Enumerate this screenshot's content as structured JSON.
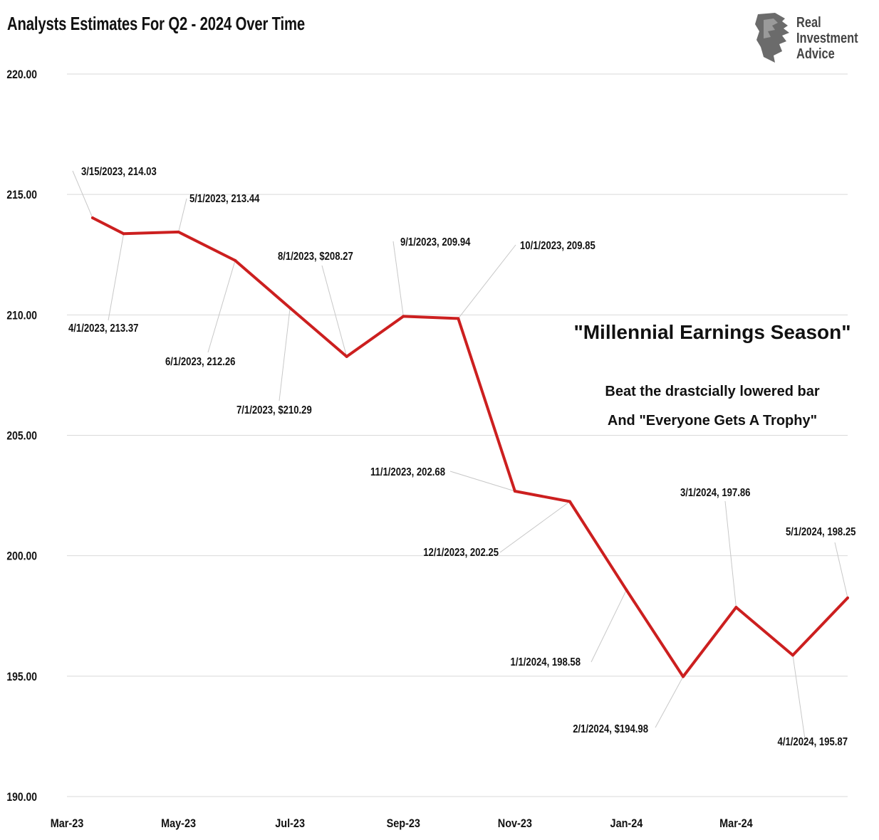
{
  "brand": {
    "lines": [
      "Real",
      "Investment",
      "Advice"
    ],
    "logo": "lion-head-logo",
    "colors": {
      "text": "#444444",
      "mark": "#6b6b6b"
    }
  },
  "annotation": {
    "title": "\"Millennial Earnings Season\"",
    "line1": "Beat the drastcially lowered bar",
    "line2": "And \"Everyone Gets A Trophy\""
  },
  "chart_data": {
    "type": "line",
    "title": "Analysts Estimates For Q2 - 2024 Over Time",
    "xlabel": "",
    "ylabel": "",
    "ylim": [
      190,
      220
    ],
    "y_ticks": [
      "190.00",
      "195.00",
      "200.00",
      "205.00",
      "210.00",
      "215.00",
      "220.00"
    ],
    "x_range": [
      "2023-03-01",
      "2024-05-01"
    ],
    "x_tick_dates": [
      "2023-03-01",
      "2023-05-01",
      "2023-07-01",
      "2023-09-01",
      "2023-11-01",
      "2024-01-01",
      "2024-03-01"
    ],
    "x_tick_labels": [
      "Mar-23",
      "May-23",
      "Jul-23",
      "Sep-23",
      "Nov-23",
      "Jan-24",
      "Mar-24"
    ],
    "grid": "horizontal",
    "legend": "none",
    "line_color": "#cc1f1f",
    "series": [
      {
        "values": [
          {
            "date": "2023-03-15",
            "value": 214.03,
            "label": "3/15/2023,  214.03"
          },
          {
            "date": "2023-04-01",
            "value": 213.37,
            "label": "4/1/2023,  213.37"
          },
          {
            "date": "2023-05-01",
            "value": 213.44,
            "label": "5/1/2023,  213.44"
          },
          {
            "date": "2023-06-01",
            "value": 212.26,
            "label": "6/1/2023,  212.26"
          },
          {
            "date": "2023-07-01",
            "value": 210.29,
            "label": "7/1/2023, $210.29"
          },
          {
            "date": "2023-08-01",
            "value": 208.27,
            "label": "8/1/2023, $208.27"
          },
          {
            "date": "2023-09-01",
            "value": 209.94,
            "label": "9/1/2023,  209.94"
          },
          {
            "date": "2023-10-01",
            "value": 209.85,
            "label": "10/1/2023,  209.85"
          },
          {
            "date": "2023-11-01",
            "value": 202.68,
            "label": "11/1/2023,  202.68"
          },
          {
            "date": "2023-12-01",
            "value": 202.25,
            "label": "12/1/2023,  202.25"
          },
          {
            "date": "2024-01-01",
            "value": 198.58,
            "label": "1/1/2024,  198.58"
          },
          {
            "date": "2024-02-01",
            "value": 194.98,
            "label": "2/1/2024, $194.98"
          },
          {
            "date": "2024-03-01",
            "value": 197.86,
            "label": "3/1/2024,  197.86"
          },
          {
            "date": "2024-04-01",
            "value": 195.87,
            "label": "4/1/2024,  195.87"
          },
          {
            "date": "2024-05-01",
            "value": 198.25,
            "label": "5/1/2024,  198.25"
          }
        ]
      }
    ]
  }
}
